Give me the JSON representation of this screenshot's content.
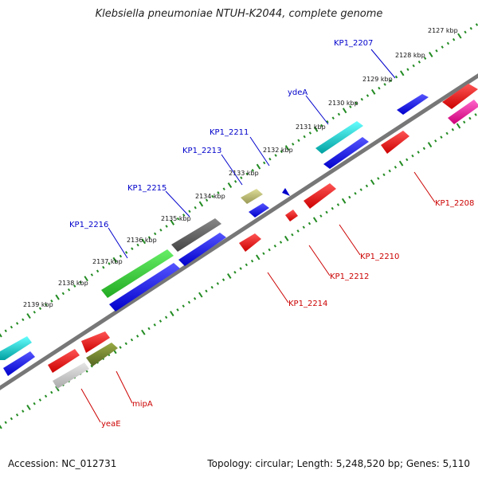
{
  "title": "Klebsiella pneumoniae NTUH-K2044, complete genome",
  "footer": {
    "accession": "Accession: NC_012731",
    "summary": "Topology: circular; Length: 5,248,520 bp; Genes: 5,110"
  },
  "colors": {
    "forward_tick": "#228B22",
    "reverse_tick": "#228B22",
    "backbone": "#808080",
    "forward_label": "#0000CC",
    "reverse_label": "#CC0000"
  },
  "kbp_labels": [
    "2127 kbp",
    "2128 kbp",
    "2129 kbp",
    "2130 kbp",
    "2131 kbp",
    "2132 kbp",
    "2133 kbp",
    "2134 kbp",
    "2135 kbp",
    "2136 kbp",
    "2137 kbp",
    "2138 kbp",
    "2139 kbp"
  ],
  "forward_genes": [
    "KP1_2207",
    "ydeA",
    "KP1_2211",
    "KP1_2213",
    "KP1_2215",
    "KP1_2216"
  ],
  "reverse_genes": [
    "KP1_2208",
    "KP1_2210",
    "KP1_2212",
    "KP1_2214",
    "mipA",
    "yeaE"
  ]
}
